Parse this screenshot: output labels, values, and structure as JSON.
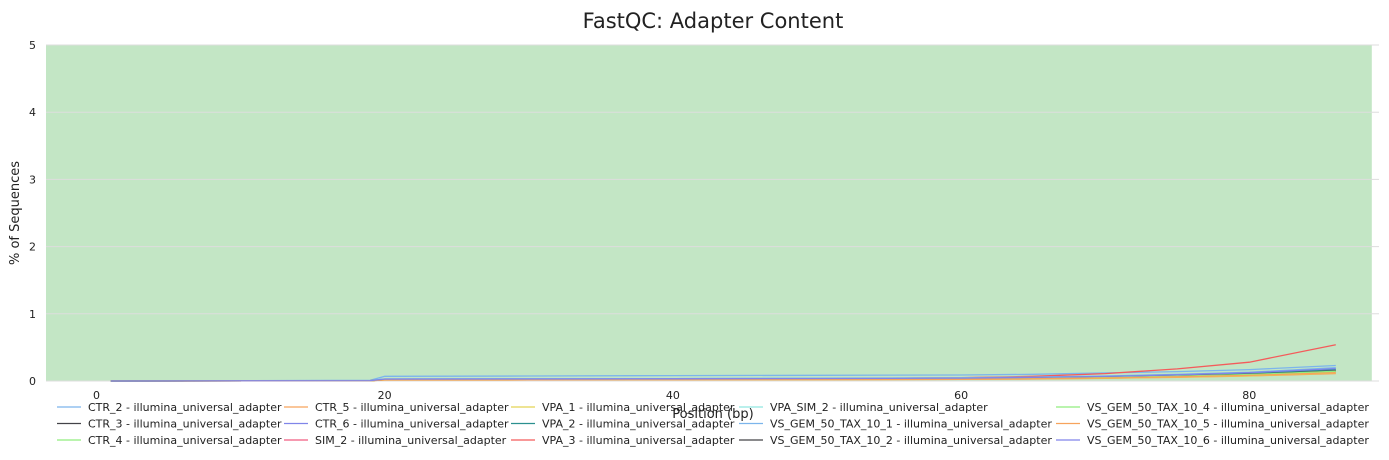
{
  "chart_data": {
    "type": "line",
    "title": "FastQC: Adapter Content",
    "xlabel": "Position (bp)",
    "ylabel": "% of Sequences",
    "xlim": [
      -3.5,
      89
    ],
    "ylim": [
      0,
      5
    ],
    "xticks": [
      0,
      20,
      40,
      60,
      80
    ],
    "yticks": [
      0,
      1,
      2,
      3,
      4,
      5
    ],
    "grid": "horizontal",
    "background_band": {
      "ymin": 0,
      "ymax": 5,
      "xmax": 88.5,
      "color": "#c3e6c5"
    },
    "x": [
      1,
      19,
      20,
      30,
      40,
      50,
      60,
      65,
      70,
      75,
      80,
      86
    ],
    "legend_position": "bottom",
    "series": [
      {
        "name": "CTR_2 - illumina_universal_adapter",
        "color": "#7cb5ec",
        "values": [
          0,
          0.01,
          0.07,
          0.075,
          0.08,
          0.085,
          0.09,
          0.1,
          0.12,
          0.14,
          0.17,
          0.23
        ]
      },
      {
        "name": "CTR_3 - illumina_universal_adapter",
        "color": "#434348",
        "values": [
          0,
          0.005,
          0.02,
          0.022,
          0.025,
          0.028,
          0.032,
          0.04,
          0.055,
          0.075,
          0.1,
          0.15
        ]
      },
      {
        "name": "CTR_4 - illumina_universal_adapter",
        "color": "#90ed7d",
        "values": [
          0,
          0.005,
          0.02,
          0.021,
          0.023,
          0.026,
          0.03,
          0.037,
          0.05,
          0.07,
          0.095,
          0.14
        ]
      },
      {
        "name": "CTR_5 - illumina_universal_adapter",
        "color": "#f7a35c",
        "values": [
          0,
          0.004,
          0.015,
          0.016,
          0.018,
          0.02,
          0.024,
          0.03,
          0.04,
          0.055,
          0.075,
          0.11
        ]
      },
      {
        "name": "CTR_6 - illumina_universal_adapter",
        "color": "#8085e9",
        "values": [
          0,
          0.006,
          0.03,
          0.032,
          0.035,
          0.04,
          0.045,
          0.055,
          0.07,
          0.09,
          0.12,
          0.18
        ]
      },
      {
        "name": "SIM_2 - illumina_universal_adapter",
        "color": "#f15c80",
        "values": [
          0,
          0.005,
          0.02,
          0.022,
          0.025,
          0.029,
          0.034,
          0.043,
          0.058,
          0.08,
          0.105,
          0.16
        ]
      },
      {
        "name": "VPA_1 - illumina_universal_adapter",
        "color": "#e4d354",
        "values": [
          0,
          0.004,
          0.015,
          0.016,
          0.018,
          0.021,
          0.025,
          0.031,
          0.042,
          0.058,
          0.078,
          0.12
        ]
      },
      {
        "name": "VPA_2 - illumina_universal_adapter",
        "color": "#2b908f",
        "values": [
          0,
          0.006,
          0.025,
          0.027,
          0.03,
          0.034,
          0.039,
          0.048,
          0.063,
          0.085,
          0.115,
          0.17
        ]
      },
      {
        "name": "VPA_3 - illumina_universal_adapter",
        "color": "#f45b5b",
        "values": [
          0,
          0.005,
          0.02,
          0.022,
          0.025,
          0.03,
          0.05,
          0.07,
          0.11,
          0.18,
          0.28,
          0.54
        ]
      },
      {
        "name": "VPA_SIM_2 - illumina_universal_adapter",
        "color": "#91e8e1",
        "values": [
          0,
          0.006,
          0.03,
          0.032,
          0.036,
          0.041,
          0.047,
          0.058,
          0.075,
          0.1,
          0.13,
          0.19
        ]
      },
      {
        "name": "VS_GEM_50_TAX_10_1 - illumina_universal_adapter",
        "color": "#7cb5ec",
        "values": [
          0,
          0.006,
          0.03,
          0.032,
          0.035,
          0.04,
          0.046,
          0.057,
          0.074,
          0.098,
          0.13,
          0.2
        ]
      },
      {
        "name": "VS_GEM_50_TAX_10_2 - illumina_universal_adapter",
        "color": "#434348",
        "values": [
          0,
          0.005,
          0.02,
          0.022,
          0.025,
          0.029,
          0.034,
          0.042,
          0.056,
          0.077,
          0.1,
          0.15
        ]
      },
      {
        "name": "VS_GEM_50_TAX_10_4 - illumina_universal_adapter",
        "color": "#90ed7d",
        "values": [
          0,
          0.005,
          0.02,
          0.021,
          0.024,
          0.027,
          0.031,
          0.039,
          0.052,
          0.072,
          0.097,
          0.145
        ]
      },
      {
        "name": "VS_GEM_50_TAX_10_5 - illumina_universal_adapter",
        "color": "#f7a35c",
        "values": [
          0,
          0.004,
          0.016,
          0.017,
          0.019,
          0.022,
          0.026,
          0.033,
          0.045,
          0.062,
          0.083,
          0.125
        ]
      },
      {
        "name": "VS_GEM_50_TAX_10_6 - illumina_universal_adapter",
        "color": "#8085e9",
        "values": [
          0,
          0.006,
          0.028,
          0.03,
          0.033,
          0.037,
          0.043,
          0.053,
          0.069,
          0.092,
          0.123,
          0.185
        ]
      }
    ]
  }
}
